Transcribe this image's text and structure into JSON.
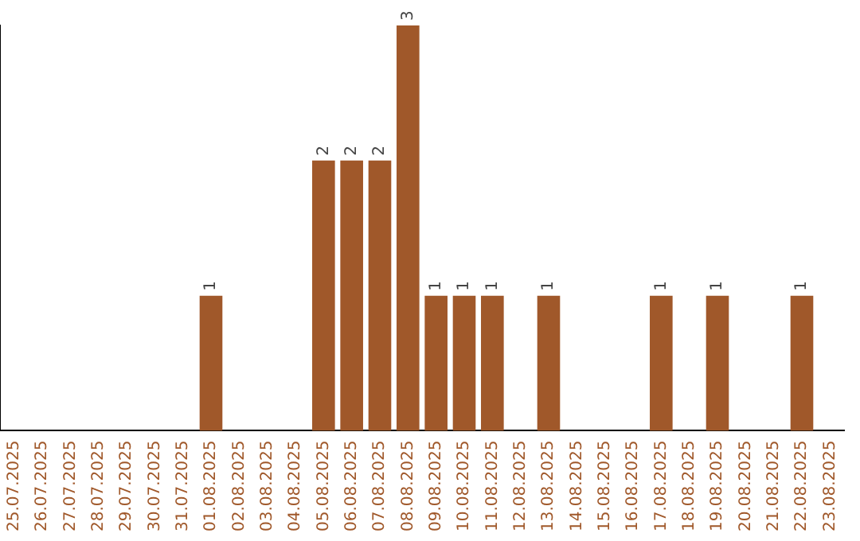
{
  "chart_data": {
    "type": "bar",
    "categories": [
      "25.07.2025",
      "26.07.2025",
      "27.07.2025",
      "28.07.2025",
      "29.07.2025",
      "30.07.2025",
      "31.07.2025",
      "01.08.2025",
      "02.08.2025",
      "03.08.2025",
      "04.08.2025",
      "05.08.2025",
      "06.08.2025",
      "07.08.2025",
      "08.08.2025",
      "09.08.2025",
      "10.08.2025",
      "11.08.2025",
      "12.08.2025",
      "13.08.2025",
      "14.08.2025",
      "15.08.2025",
      "16.08.2025",
      "17.08.2025",
      "18.08.2025",
      "19.08.2025",
      "20.08.2025",
      "21.08.2025",
      "22.08.2025",
      "23.08.2025"
    ],
    "values": [
      0,
      0,
      0,
      0,
      0,
      0,
      0,
      1,
      0,
      0,
      0,
      2,
      2,
      2,
      3,
      1,
      1,
      1,
      0,
      1,
      0,
      0,
      0,
      1,
      0,
      1,
      0,
      0,
      1,
      0
    ],
    "value_labels": [
      null,
      null,
      null,
      null,
      null,
      null,
      null,
      "1",
      null,
      null,
      null,
      "2",
      "2",
      "2",
      "3",
      "1",
      "1",
      "1",
      null,
      "1",
      null,
      null,
      null,
      "1",
      null,
      "1",
      null,
      null,
      "1",
      null
    ],
    "color": "#a0582a",
    "tick_labels": "x",
    "grid": false,
    "legend": false
  }
}
